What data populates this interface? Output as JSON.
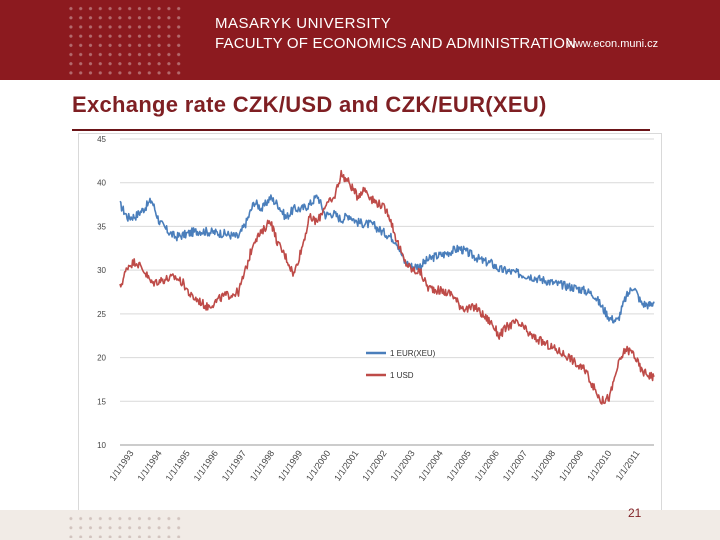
{
  "header": {
    "university": "MASARYK UNIVERSITY",
    "faculty": "FACULTY OF ECONOMICS AND ADMINISTRATION",
    "url": "www.econ.muni.cz"
  },
  "slide": {
    "title": "Exchange rate CZK/USD and CZK/EUR(XEU)",
    "page_number": "21"
  },
  "colors": {
    "header_bg": "#8c1a1f",
    "title": "#7f1f23",
    "series_eur": "#4a7ebb",
    "series_usd": "#be4b48"
  },
  "chart_data": {
    "type": "line",
    "ylim": [
      10,
      45
    ],
    "yticks": [
      10,
      15,
      20,
      25,
      30,
      35,
      40,
      45
    ],
    "xlim": [
      1993.0,
      2009.9
    ],
    "xtick_labels": [
      "1/1/1993",
      "1/1/1994",
      "1/1/1995",
      "1/1/1996",
      "1/1/1997",
      "1/1/1998",
      "1/1/1999",
      "1/1/2000",
      "1/1/2001",
      "1/1/2002",
      "1/1/2003",
      "1/1/2004",
      "1/1/2005",
      "1/1/2006",
      "1/1/2007",
      "1/1/2008",
      "1/1/2009",
      "1/1/2010",
      "1/1/2011"
    ],
    "grid": true,
    "legend_position": "center-right",
    "x": [
      1993.0,
      1993.25,
      1993.5,
      1993.75,
      1994.0,
      1994.25,
      1994.5,
      1994.75,
      1995.0,
      1995.25,
      1995.5,
      1995.75,
      1996.0,
      1996.25,
      1996.5,
      1996.75,
      1997.0,
      1997.25,
      1997.5,
      1997.75,
      1998.0,
      1998.25,
      1998.5,
      1998.75,
      1999.0,
      1999.25,
      1999.5,
      1999.75,
      2000.0,
      2000.25,
      2000.5,
      2000.75,
      2001.0,
      2001.25,
      2001.5,
      2001.75,
      2002.0,
      2002.25,
      2002.5,
      2002.75,
      2003.0,
      2003.25,
      2003.5,
      2003.75,
      2004.0,
      2004.25,
      2004.5,
      2004.75,
      2005.0,
      2005.25,
      2005.5,
      2005.75,
      2006.0,
      2006.25,
      2006.5,
      2006.75,
      2007.0,
      2007.25,
      2007.5,
      2007.75,
      2008.0,
      2008.25,
      2008.5,
      2008.75,
      2009.0,
      2009.25,
      2009.5,
      2009.75,
      2009.9
    ],
    "series": [
      {
        "name": "1 EUR(XEU)",
        "color": "#4a7ebb",
        "values": [
          37.5,
          36.0,
          36.2,
          37.0,
          38.0,
          35.5,
          34.5,
          33.8,
          34.0,
          34.3,
          34.5,
          34.4,
          34.3,
          34.2,
          34.0,
          33.8,
          35.5,
          37.8,
          37.0,
          38.3,
          37.5,
          36.0,
          37.0,
          37.0,
          37.5,
          38.5,
          36.3,
          36.5,
          35.8,
          36.3,
          35.5,
          35.3,
          35.2,
          34.5,
          34.0,
          33.3,
          31.0,
          30.4,
          30.5,
          31.2,
          31.6,
          31.8,
          32.2,
          32.5,
          32.0,
          31.5,
          31.0,
          30.8,
          30.1,
          29.9,
          29.7,
          29.5,
          29.3,
          29.0,
          28.8,
          28.5,
          28.3,
          28.1,
          27.9,
          27.6,
          27.2,
          25.8,
          24.5,
          24.2,
          26.8,
          28.2,
          26.2,
          26.0,
          26.4
        ]
      },
      {
        "name": "1 USD",
        "color": "#be4b48",
        "values": [
          28.0,
          30.5,
          31.0,
          30.0,
          28.5,
          28.8,
          29.0,
          29.2,
          28.5,
          27.0,
          26.5,
          25.8,
          26.3,
          27.0,
          27.2,
          27.5,
          30.3,
          33.5,
          34.3,
          35.8,
          33.0,
          31.5,
          29.5,
          32.5,
          36.0,
          35.5,
          37.5,
          38.0,
          41.0,
          40.0,
          38.5,
          39.3,
          38.0,
          37.5,
          36.5,
          33.5,
          31.0,
          30.0,
          29.8,
          28.0,
          27.8,
          27.5,
          27.3,
          26.0,
          25.5,
          25.8,
          24.8,
          24.0,
          22.5,
          23.5,
          24.0,
          23.5,
          22.5,
          22.0,
          21.5,
          21.0,
          20.5,
          20.0,
          19.0,
          18.5,
          16.5,
          15.0,
          15.5,
          19.0,
          21.0,
          20.5,
          18.5,
          18.0,
          17.8
        ]
      }
    ]
  }
}
